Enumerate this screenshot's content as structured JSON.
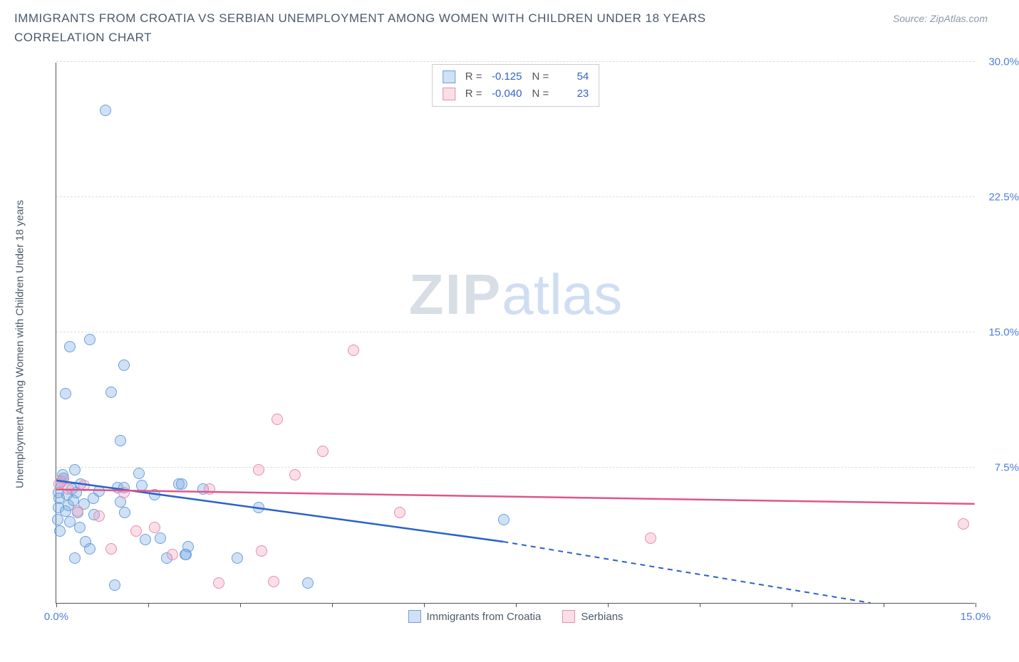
{
  "title": "IMMIGRANTS FROM CROATIA VS SERBIAN UNEMPLOYMENT AMONG WOMEN WITH CHILDREN UNDER 18 YEARS CORRELATION CHART",
  "source": "Source: ZipAtlas.com",
  "ylabel": "Unemployment Among Women with Children Under 18 years",
  "watermark_a": "ZIP",
  "watermark_b": "atlas",
  "chart": {
    "type": "scatter",
    "xlim": [
      0,
      15
    ],
    "ylim": [
      0,
      30
    ],
    "background_color": "#ffffff",
    "grid_color": "#dddddd",
    "axis_color": "#555555",
    "label_color": "#4f7fd6",
    "point_radius": 8,
    "point_stroke_width": 1.2,
    "yticks": [
      {
        "v": 7.5,
        "label": "7.5%"
      },
      {
        "v": 15.0,
        "label": "15.0%"
      },
      {
        "v": 22.5,
        "label": "22.5%"
      },
      {
        "v": 30.0,
        "label": "30.0%"
      }
    ],
    "xticks": [
      0,
      1.5,
      3.0,
      4.5,
      6.0,
      7.5,
      9.0,
      10.5,
      12.0,
      13.5,
      15.0
    ],
    "xtick_labels": [
      {
        "v": 0,
        "label": "0.0%"
      },
      {
        "v": 15,
        "label": "15.0%"
      }
    ],
    "series": [
      {
        "name": "Immigrants from Croatia",
        "fill": "rgba(120,170,230,0.35)",
        "stroke": "#6aa0db",
        "trend_color": "#2a62c8",
        "trend": {
          "x1": 0,
          "y1": 6.8,
          "x2_solid": 7.3,
          "y2_solid": 3.4,
          "x2": 13.3,
          "y2": 0.0
        },
        "R_label": "R =",
        "R": "-0.125",
        "N_label": "N =",
        "N": "54",
        "points": [
          [
            0.02,
            4.6
          ],
          [
            0.04,
            5.3
          ],
          [
            0.03,
            6.1
          ],
          [
            0.08,
            6.7
          ],
          [
            0.05,
            5.8
          ],
          [
            0.1,
            7.1
          ],
          [
            0.06,
            4.0
          ],
          [
            0.15,
            5.1
          ],
          [
            0.18,
            6.0
          ],
          [
            0.12,
            6.9
          ],
          [
            0.2,
            5.4
          ],
          [
            0.22,
            4.5
          ],
          [
            0.25,
            6.3
          ],
          [
            0.28,
            5.7
          ],
          [
            0.3,
            7.4
          ],
          [
            0.33,
            6.1
          ],
          [
            0.35,
            5.0
          ],
          [
            0.38,
            4.2
          ],
          [
            0.4,
            6.6
          ],
          [
            0.45,
            5.5
          ],
          [
            0.48,
            3.4
          ],
          [
            0.55,
            3.0
          ],
          [
            0.6,
            5.8
          ],
          [
            0.62,
            4.9
          ],
          [
            0.7,
            6.2
          ],
          [
            0.8,
            27.3
          ],
          [
            0.55,
            14.6
          ],
          [
            0.22,
            14.2
          ],
          [
            0.15,
            11.6
          ],
          [
            0.9,
            11.7
          ],
          [
            1.1,
            13.2
          ],
          [
            1.05,
            9.0
          ],
          [
            1.0,
            6.4
          ],
          [
            1.05,
            5.6
          ],
          [
            1.1,
            6.4
          ],
          [
            1.12,
            5.0
          ],
          [
            1.35,
            7.2
          ],
          [
            1.4,
            6.5
          ],
          [
            1.45,
            3.5
          ],
          [
            1.6,
            6.0
          ],
          [
            1.7,
            3.6
          ],
          [
            1.8,
            2.5
          ],
          [
            2.0,
            6.6
          ],
          [
            2.05,
            6.6
          ],
          [
            2.1,
            2.7
          ],
          [
            2.12,
            2.7
          ],
          [
            2.15,
            3.1
          ],
          [
            2.4,
            6.3
          ],
          [
            2.95,
            2.5
          ],
          [
            3.3,
            5.3
          ],
          [
            4.1,
            1.1
          ],
          [
            7.3,
            4.6
          ],
          [
            0.3,
            2.5
          ],
          [
            0.95,
            1.0
          ]
        ]
      },
      {
        "name": "Serbians",
        "fill": "rgba(240,160,190,0.35)",
        "stroke": "#e48fb0",
        "trend_color": "#e0558b",
        "trend": {
          "x1": 0,
          "y1": 6.3,
          "x2_solid": 15,
          "y2_solid": 5.5,
          "x2": 15,
          "y2": 5.5
        },
        "R_label": "R =",
        "R": "-0.040",
        "N_label": "N =",
        "N": "23",
        "points": [
          [
            0.05,
            6.6
          ],
          [
            0.1,
            6.8
          ],
          [
            0.2,
            6.3
          ],
          [
            0.35,
            5.1
          ],
          [
            0.45,
            6.5
          ],
          [
            0.7,
            4.8
          ],
          [
            0.9,
            3.0
          ],
          [
            1.1,
            6.1
          ],
          [
            1.3,
            4.0
          ],
          [
            1.6,
            4.2
          ],
          [
            1.9,
            2.7
          ],
          [
            2.5,
            6.3
          ],
          [
            2.65,
            1.1
          ],
          [
            3.3,
            7.4
          ],
          [
            3.35,
            2.9
          ],
          [
            3.55,
            1.2
          ],
          [
            3.6,
            10.2
          ],
          [
            3.9,
            7.1
          ],
          [
            4.35,
            8.4
          ],
          [
            4.85,
            14.0
          ],
          [
            5.6,
            5.0
          ],
          [
            9.7,
            3.6
          ],
          [
            14.8,
            4.4
          ]
        ]
      }
    ],
    "legend_bottom": [
      {
        "name": "Immigrants from Croatia",
        "fill": "rgba(120,170,230,0.35)",
        "stroke": "#6aa0db"
      },
      {
        "name": "Serbians",
        "fill": "rgba(240,160,190,0.35)",
        "stroke": "#e48fb0"
      }
    ]
  }
}
